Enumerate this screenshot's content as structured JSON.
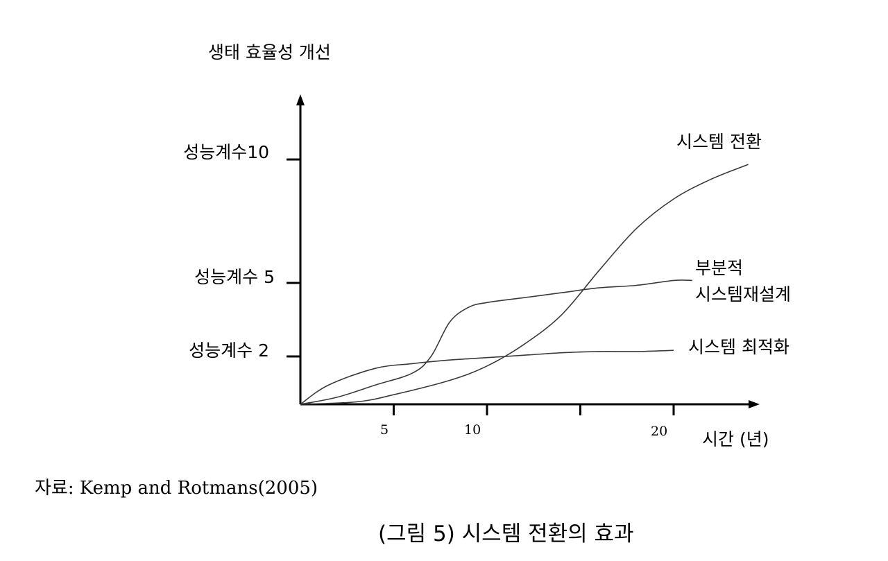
{
  "chart_data": {
    "type": "line",
    "ylabel": "생태 효율성 개선",
    "xlabel": "시간 (년)",
    "x_ticks": [
      {
        "value": 5,
        "label": "5"
      },
      {
        "value": 10,
        "label": "10"
      },
      {
        "value": 15,
        "label": ""
      },
      {
        "value": 20,
        "label": "20"
      }
    ],
    "y_ticks": [
      {
        "value": 2,
        "label": "성능계수 2"
      },
      {
        "value": 5,
        "label": "성능계수 5"
      },
      {
        "value": 10,
        "label": "성능계수10"
      }
    ],
    "xlim": [
      0,
      25
    ],
    "series": [
      {
        "name": "시스템 전환",
        "x": [
          0,
          3,
          5,
          8,
          10,
          12,
          14,
          16,
          18,
          20,
          22,
          24
        ],
        "y": [
          0,
          0.1,
          0.4,
          1.0,
          1.6,
          2.5,
          3.7,
          5.5,
          7.2,
          8.4,
          9.2,
          9.8
        ]
      },
      {
        "name": "부분적\n시스템재설계",
        "x": [
          0,
          2,
          4,
          6,
          7,
          8,
          9,
          10,
          12,
          14,
          16,
          18,
          20,
          21
        ],
        "y": [
          0,
          0.3,
          0.8,
          1.3,
          2.0,
          3.4,
          4.0,
          4.2,
          4.4,
          4.6,
          4.8,
          4.9,
          5.1,
          5.1
        ]
      },
      {
        "name": "시스템 최적화",
        "x": [
          0,
          1.5,
          4,
          6,
          8,
          10,
          12,
          14,
          16,
          18,
          20
        ],
        "y": [
          0,
          0.8,
          1.5,
          1.7,
          1.85,
          1.95,
          2.05,
          2.15,
          2.2,
          2.2,
          2.25
        ]
      }
    ]
  },
  "source_note": "자료: Kemp and Rotmans(2005)",
  "caption": "(그림 5) 시스템 전환의 효과"
}
